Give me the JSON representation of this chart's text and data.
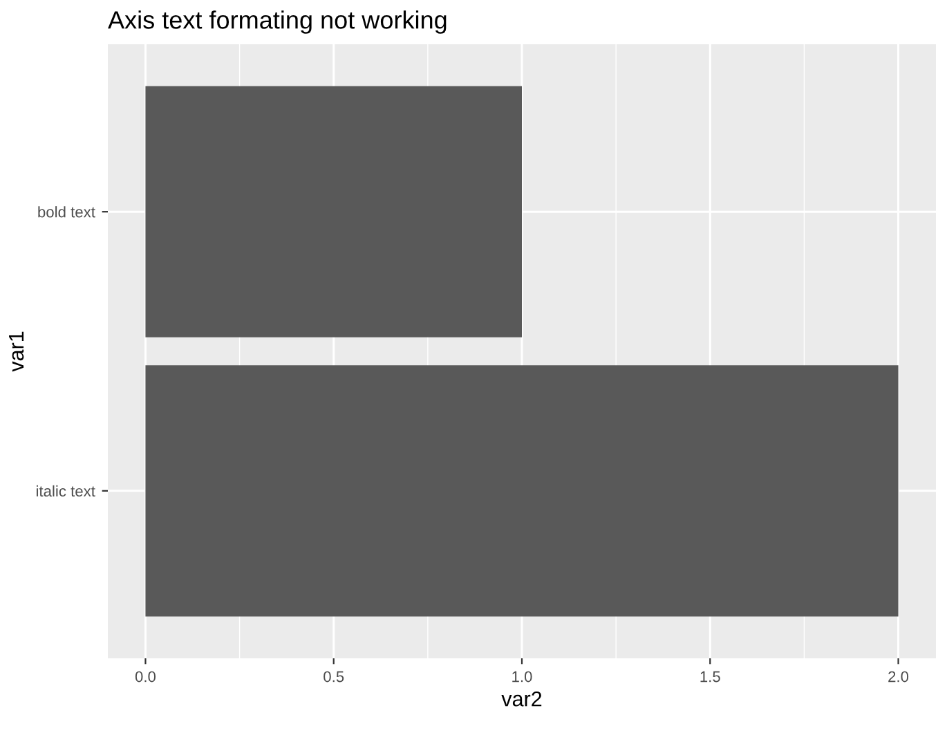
{
  "chart_data": {
    "type": "bar",
    "orientation": "horizontal",
    "title": "Axis text formating not working",
    "xlabel": "var2",
    "ylabel": "var1",
    "categories": [
      "bold text",
      "italic text"
    ],
    "values": [
      1,
      2
    ],
    "color": "#595959",
    "xlim": [
      -0.1,
      2.1
    ],
    "xticks": [
      {
        "value": 0,
        "label": "0.0"
      },
      0.5,
      {
        "value": 1,
        "label": "1.0"
      },
      1.5,
      {
        "value": 2,
        "label": "2.0"
      }
    ],
    "grid": true,
    "legend": false
  }
}
